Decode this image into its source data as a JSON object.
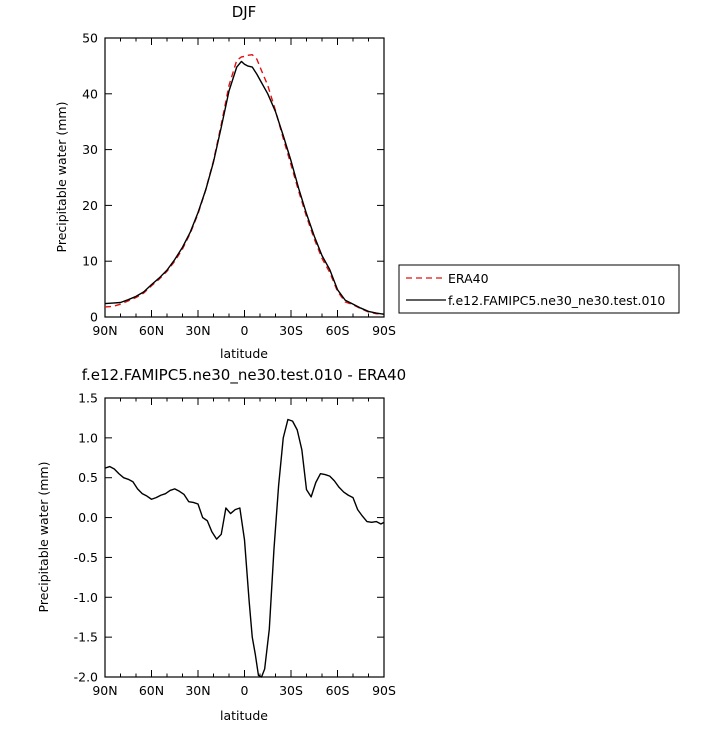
{
  "chart_data": [
    {
      "type": "line",
      "title": "DJF",
      "xlabel": "latitude",
      "ylabel": "Precipitable water (mm)",
      "xlim": [
        -90,
        90
      ],
      "ylim": [
        0,
        50
      ],
      "x_ticks": [
        -90,
        -60,
        -30,
        0,
        30,
        60,
        90
      ],
      "x_tick_labels": [
        "90N",
        "60N",
        "30N",
        "0",
        "30S",
        "60S",
        "90S"
      ],
      "y_ticks": [
        0,
        10,
        20,
        30,
        40,
        50
      ],
      "y_tick_labels": [
        "0",
        "10",
        "20",
        "30",
        "40",
        "50"
      ],
      "legend_position": "right",
      "series": [
        {
          "name": "ERA40",
          "color": "#e01010",
          "dash": "dashed",
          "x": [
            -90,
            -85,
            -80,
            -75,
            -70,
            -65,
            -60,
            -55,
            -50,
            -45,
            -40,
            -35,
            -30,
            -25,
            -20,
            -15,
            -10,
            -5,
            -2,
            0,
            2,
            5,
            8,
            10,
            15,
            20,
            25,
            30,
            35,
            40,
            45,
            50,
            55,
            60,
            65,
            70,
            75,
            80,
            85,
            90
          ],
          "y": [
            1.8,
            1.9,
            2.3,
            2.9,
            3.5,
            4.3,
            5.6,
            6.8,
            8.2,
            10.0,
            12.2,
            15.0,
            18.5,
            22.8,
            28.0,
            34.5,
            41.5,
            46.0,
            46.6,
            46.7,
            46.9,
            47.0,
            46.2,
            44.8,
            41.5,
            37.0,
            32.0,
            27.3,
            22.5,
            18.0,
            14.0,
            10.5,
            8.0,
            4.6,
            2.7,
            2.2,
            1.5,
            0.9,
            0.6,
            0.5
          ]
        },
        {
          "name": "f.e12.FAMIPC5.ne30_ne30.test.010",
          "color": "#000000",
          "dash": "solid",
          "x": [
            -90,
            -85,
            -80,
            -75,
            -70,
            -65,
            -60,
            -55,
            -50,
            -45,
            -40,
            -35,
            -30,
            -25,
            -20,
            -15,
            -10,
            -5,
            -2,
            0,
            2,
            5,
            8,
            10,
            15,
            20,
            25,
            30,
            35,
            40,
            45,
            50,
            55,
            60,
            65,
            70,
            75,
            80,
            85,
            90
          ],
          "y": [
            2.4,
            2.5,
            2.6,
            3.1,
            3.7,
            4.5,
            5.8,
            7.0,
            8.4,
            10.3,
            12.5,
            15.2,
            18.7,
            22.8,
            27.8,
            34.0,
            40.5,
            44.8,
            45.8,
            45.3,
            45.0,
            44.8,
            43.5,
            42.5,
            40.0,
            36.8,
            32.5,
            28.0,
            23.0,
            18.5,
            14.5,
            11.0,
            8.5,
            4.9,
            3.0,
            2.3,
            1.6,
            1.0,
            0.7,
            0.5
          ]
        }
      ]
    },
    {
      "type": "line",
      "title": "f.e12.FAMIPC5.ne30_ne30.test.010 - ERA40",
      "xlabel": "latitude",
      "ylabel": "Precipitable water (mm)",
      "xlim": [
        -90,
        90
      ],
      "ylim": [
        -2.0,
        1.5
      ],
      "x_ticks": [
        -90,
        -60,
        -30,
        0,
        30,
        60,
        90
      ],
      "x_tick_labels": [
        "90N",
        "60N",
        "30N",
        "0",
        "30S",
        "60S",
        "90S"
      ],
      "y_ticks": [
        -2.0,
        -1.5,
        -1.0,
        -0.5,
        0.0,
        0.5,
        1.0,
        1.5
      ],
      "y_tick_labels": [
        "-2.0",
        "-1.5",
        "-1.0",
        "-0.5",
        "0.0",
        "0.5",
        "1.0",
        "1.5"
      ],
      "series": [
        {
          "color": "#000000",
          "dash": "solid",
          "x": [
            -90,
            -87,
            -84,
            -81,
            -78,
            -75,
            -72,
            -69,
            -66,
            -63,
            -60,
            -57,
            -54,
            -51,
            -48,
            -45,
            -42,
            -39,
            -36,
            -33,
            -30,
            -27,
            -24,
            -21,
            -18,
            -15,
            -12,
            -9,
            -6,
            -3,
            0,
            3,
            5,
            7,
            9,
            11,
            13,
            16,
            19,
            22,
            25,
            28,
            31,
            34,
            37,
            40,
            43,
            46,
            49,
            52,
            55,
            58,
            61,
            64,
            67,
            70,
            73,
            76,
            79,
            82,
            85,
            88,
            90
          ],
          "y": [
            0.62,
            0.64,
            0.61,
            0.55,
            0.5,
            0.48,
            0.45,
            0.36,
            0.3,
            0.27,
            0.23,
            0.25,
            0.28,
            0.3,
            0.34,
            0.36,
            0.33,
            0.29,
            0.2,
            0.19,
            0.17,
            0.0,
            -0.04,
            -0.18,
            -0.27,
            -0.21,
            0.12,
            0.05,
            0.1,
            0.12,
            -0.28,
            -1.05,
            -1.5,
            -1.72,
            -1.98,
            -2.0,
            -1.9,
            -1.4,
            -0.4,
            0.4,
            1.0,
            1.23,
            1.21,
            1.1,
            0.85,
            0.35,
            0.26,
            0.44,
            0.55,
            0.54,
            0.52,
            0.46,
            0.38,
            0.32,
            0.28,
            0.25,
            0.1,
            0.02,
            -0.05,
            -0.06,
            -0.05,
            -0.08,
            -0.06
          ]
        }
      ]
    }
  ]
}
